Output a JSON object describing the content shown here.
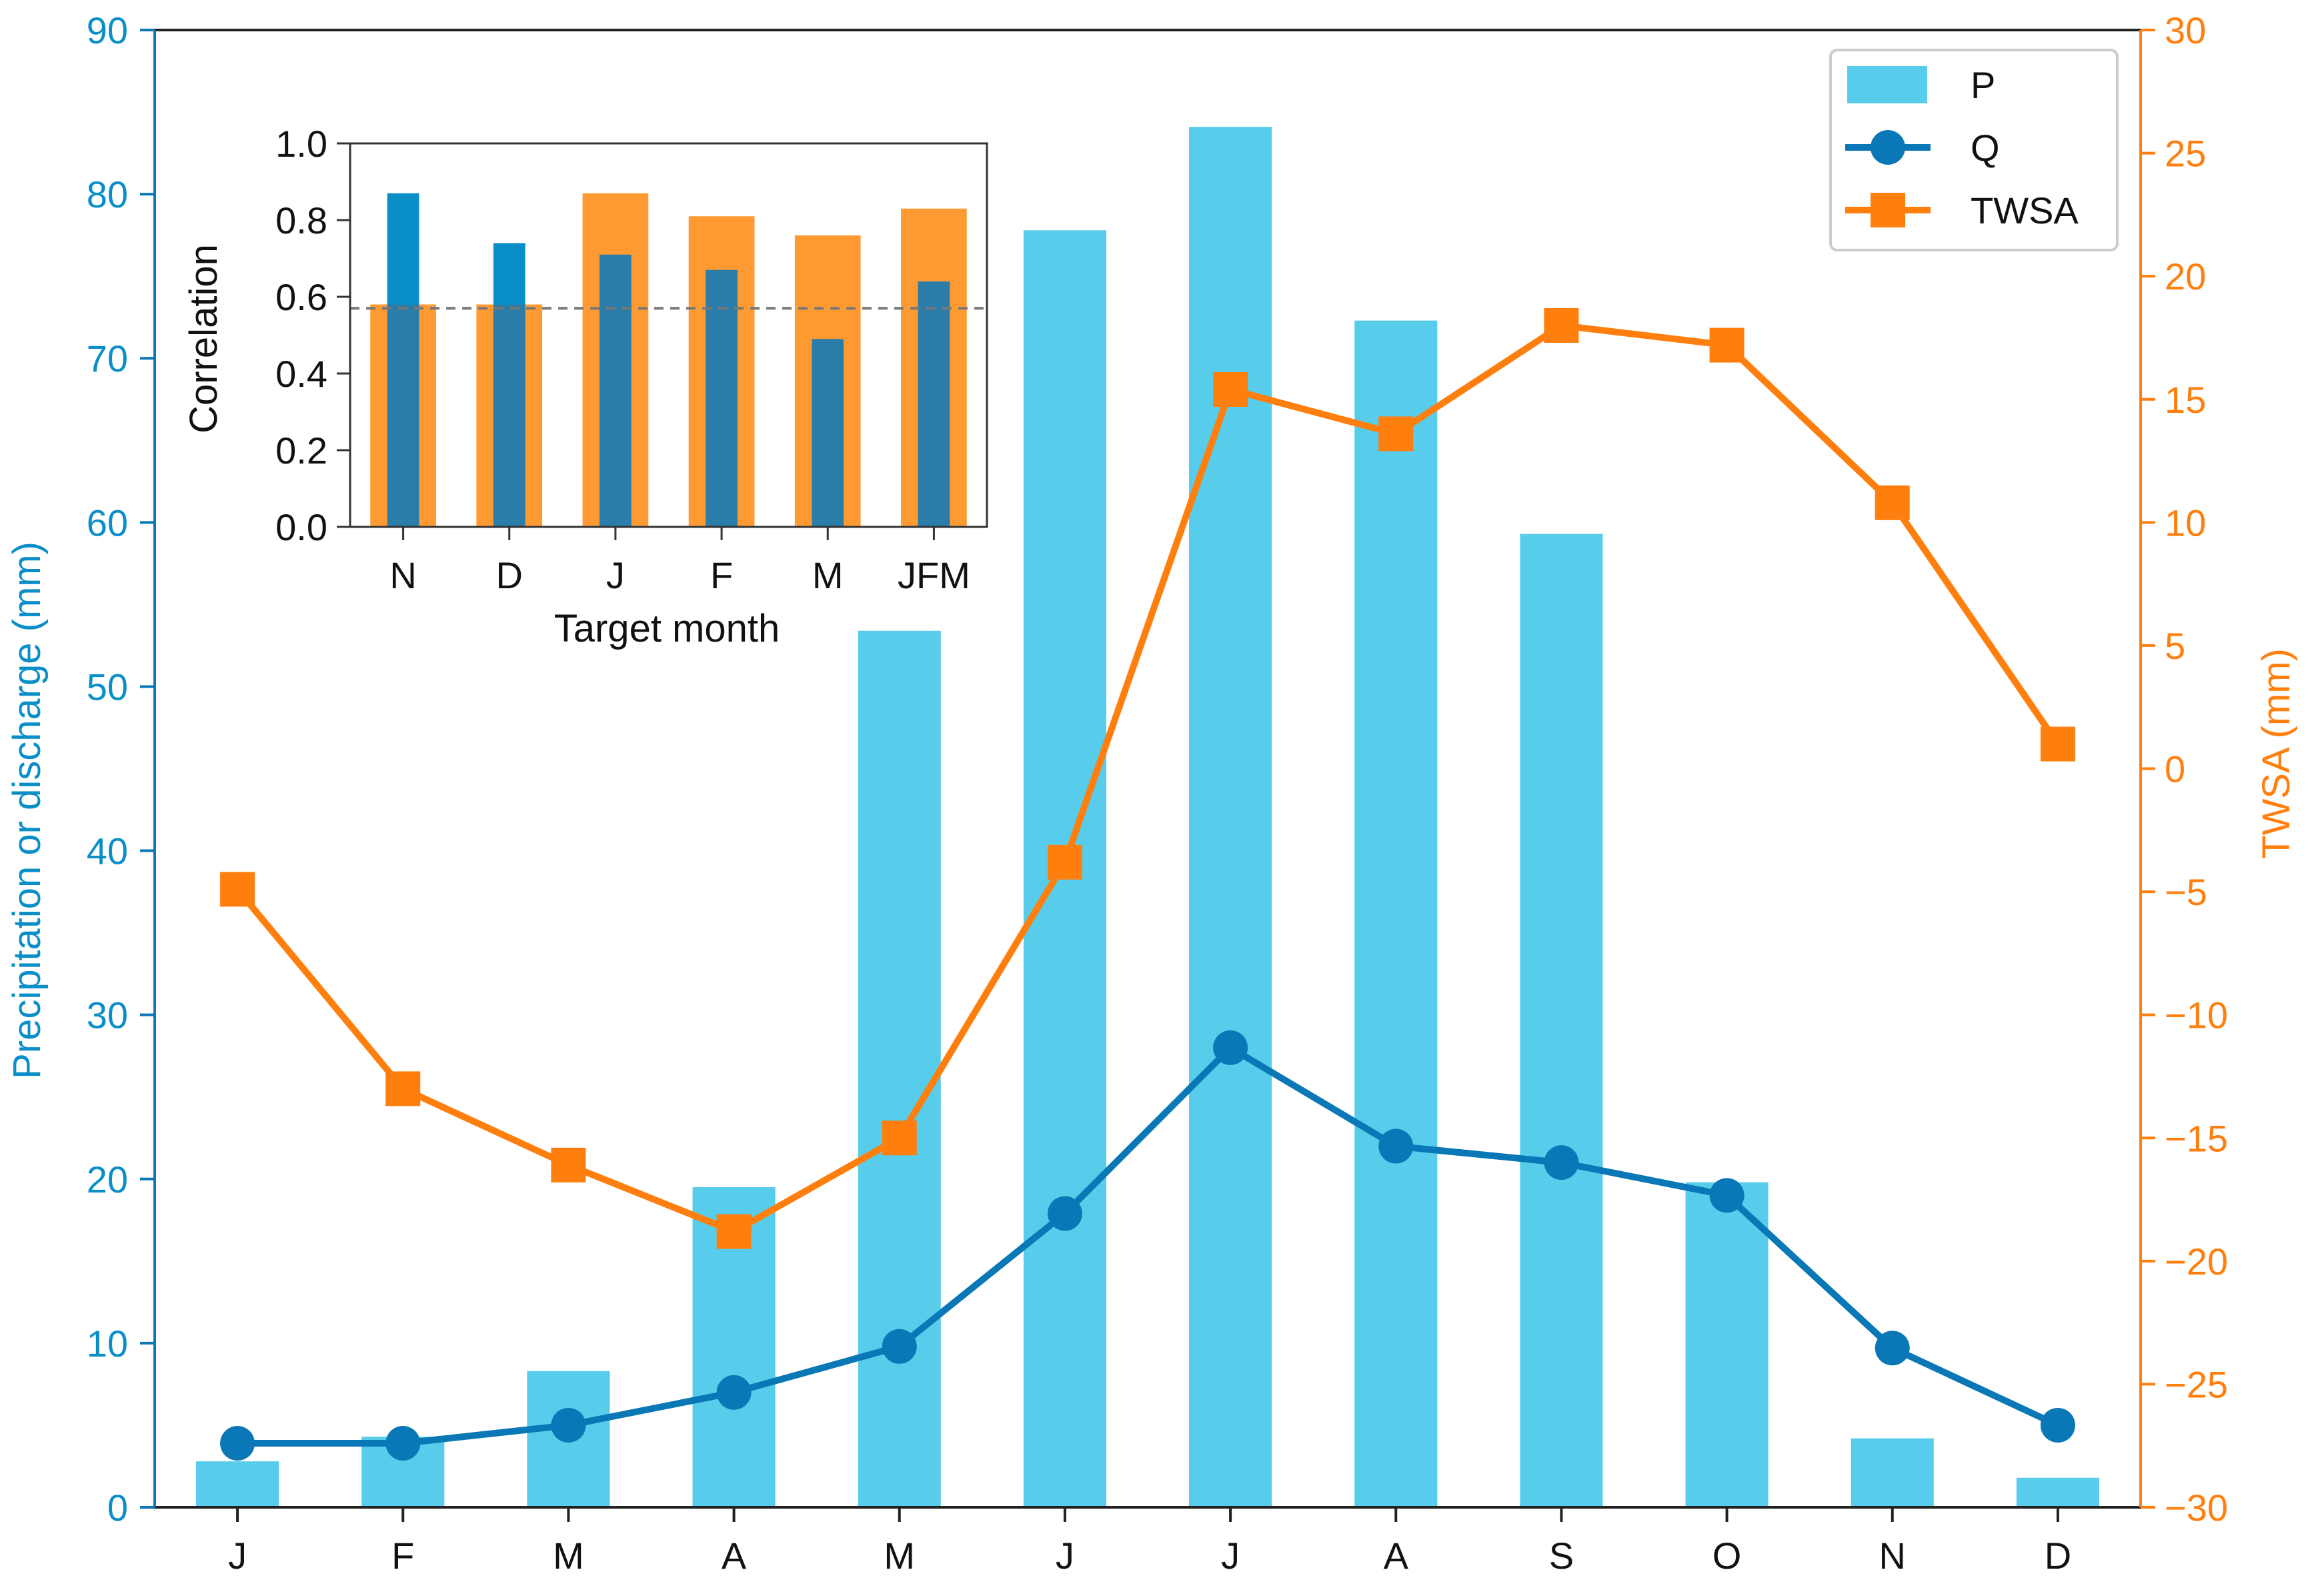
{
  "colors": {
    "precip": "#57CDEB",
    "discharge": "#0A78B6",
    "twsa": "#FF7F0E",
    "inset_grace": "#FF9A33",
    "inset_q": "#0A8EC8",
    "inset_q_overlap": "#2A7DA8",
    "axis": "#222222"
  },
  "chart_data": [
    {
      "id": "main",
      "type": "bar+line",
      "categories": [
        "J",
        "F",
        "M",
        "A",
        "M",
        "J",
        "J",
        "A",
        "S",
        "O",
        "N",
        "D"
      ],
      "ylabel_left": "Precipitation or discharge (mm)",
      "ylabel_right": "TWSA (mm)",
      "ylim_left": [
        0,
        90
      ],
      "ylim_right": [
        -30,
        30
      ],
      "yticks_left": [
        "0",
        "10",
        "20",
        "30",
        "40",
        "50",
        "60",
        "70",
        "80",
        "90"
      ],
      "yticks_right": [
        "−30",
        "−25",
        "−20",
        "−15",
        "−10",
        "−5",
        "0",
        "5",
        "10",
        "15",
        "20",
        "25",
        "30"
      ],
      "legend_position": "top-right",
      "series": [
        {
          "name": "P",
          "kind": "bar",
          "axis": "left",
          "values": [
            2.8,
            4.3,
            8.3,
            19.5,
            53.4,
            77.8,
            84.1,
            72.3,
            59.3,
            19.8,
            4.2,
            1.8
          ]
        },
        {
          "name": "Q",
          "kind": "line",
          "marker": "circle",
          "axis": "left",
          "values": [
            3.9,
            3.9,
            5.0,
            7.0,
            9.8,
            17.9,
            28.0,
            22.0,
            21.0,
            19.0,
            9.7,
            5.0
          ]
        },
        {
          "name": "TWSA",
          "kind": "line",
          "marker": "square",
          "axis": "right",
          "values": [
            -4.9,
            -13.0,
            -16.1,
            -18.8,
            -15.0,
            -3.8,
            15.4,
            13.6,
            18.0,
            17.2,
            10.8,
            1.0
          ]
        }
      ]
    },
    {
      "id": "inset",
      "type": "bar",
      "categories": [
        "N",
        "D",
        "J",
        "F",
        "M",
        "JFM"
      ],
      "xlabel": "Target month",
      "ylabel": "Correlation",
      "ylim": [
        0,
        1.0
      ],
      "yticks": [
        "0.0",
        "0.2",
        "0.4",
        "0.6",
        "0.8",
        "1.0"
      ],
      "reference_line": 0.57,
      "series": [
        {
          "name": "TWSA",
          "values": [
            0.58,
            0.58,
            0.87,
            0.81,
            0.76,
            0.83
          ]
        },
        {
          "name": "Q",
          "values": [
            0.87,
            0.74,
            0.71,
            0.67,
            0.49,
            0.64
          ]
        }
      ]
    }
  ]
}
